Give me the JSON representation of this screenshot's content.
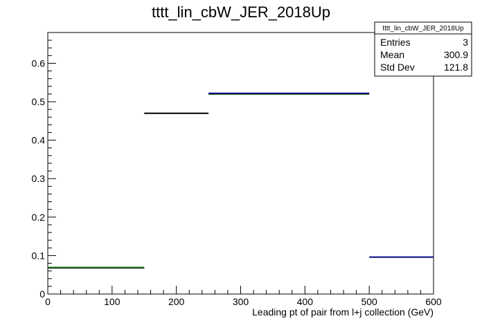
{
  "chart_data": {
    "type": "histogram",
    "title": "tttt_lin_cbW_JER_2018Up",
    "xlabel": "Leading pt of pair from l+j collection (GeV)",
    "ylabel": "",
    "xlim": [
      0,
      600
    ],
    "ylim": [
      0,
      0.68
    ],
    "x_ticks": [
      0,
      100,
      200,
      300,
      400,
      500,
      600
    ],
    "y_ticks": [
      0,
      0.1,
      0.2,
      0.3,
      0.4,
      0.5,
      0.6
    ],
    "grid": false,
    "series": [
      {
        "color": "#000000",
        "bins": [
          {
            "x0": 0,
            "x1": 150,
            "y": 0.068
          },
          {
            "x0": 150,
            "x1": 250,
            "y": 0.47
          },
          {
            "x0": 250,
            "x1": 500,
            "y": 0.52
          }
        ]
      },
      {
        "color": "#1a6b1a",
        "bins": [
          {
            "x0": 0,
            "x1": 150,
            "y": 0.069
          },
          {
            "x0": 250,
            "x1": 500,
            "y": 0.52
          }
        ]
      },
      {
        "color": "#00007f",
        "bins": [
          {
            "x0": 250,
            "x1": 500,
            "y": 0.522
          },
          {
            "x0": 500,
            "x1": 600,
            "y": 0.096
          }
        ]
      }
    ],
    "stats_box": {
      "title": "tttt_lin_cbW_JER_2018Up",
      "rows": [
        {
          "label": "Entries",
          "value": "3"
        },
        {
          "label": "Mean",
          "value": "300.9"
        },
        {
          "label": "Std Dev",
          "value": "121.8"
        }
      ]
    }
  }
}
